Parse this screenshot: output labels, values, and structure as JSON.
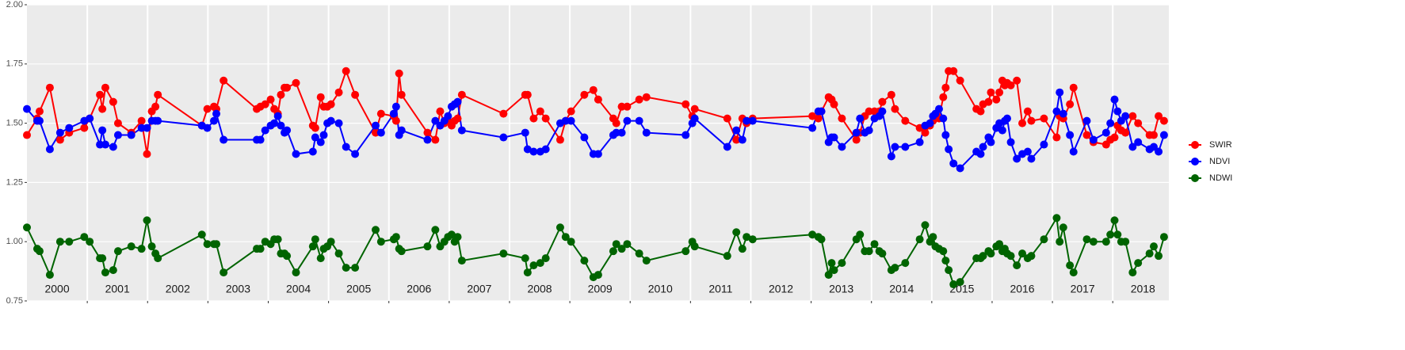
{
  "chart_data": {
    "type": "line",
    "x": [
      2000.0,
      2000.17,
      2000.21,
      2000.38,
      2000.55,
      2000.7,
      2000.95,
      2001.04,
      2001.21,
      2001.25,
      2001.3,
      2001.43,
      2001.51,
      2001.73,
      2001.9,
      2001.99,
      2002.07,
      2002.13,
      2002.17,
      2002.9,
      2002.99,
      2003.1,
      2003.14,
      2003.26,
      2003.81,
      2003.87,
      2003.95,
      2004.04,
      2004.1,
      2004.16,
      2004.21,
      2004.27,
      2004.31,
      2004.46,
      2004.74,
      2004.78,
      2004.87,
      2004.92,
      2004.98,
      2005.04,
      2005.17,
      2005.29,
      2005.44,
      2005.78,
      2005.87,
      2006.08,
      2006.12,
      2006.17,
      2006.21,
      2006.64,
      2006.77,
      2006.85,
      2006.92,
      2006.98,
      2007.04,
      2007.09,
      2007.14,
      2007.21,
      2007.9,
      2008.26,
      2008.3,
      2008.4,
      2008.51,
      2008.6,
      2008.84,
      2008.93,
      2009.02,
      2009.24,
      2009.39,
      2009.47,
      2009.72,
      2009.77,
      2009.86,
      2009.95,
      2010.15,
      2010.27,
      2010.92,
      2011.03,
      2011.07,
      2011.61,
      2011.76,
      2011.86,
      2011.93,
      2012.03,
      2013.02,
      2013.12,
      2013.17,
      2013.29,
      2013.34,
      2013.38,
      2013.51,
      2013.75,
      2013.81,
      2013.89,
      2013.96,
      2014.05,
      2014.13,
      2014.18,
      2014.33,
      2014.39,
      2014.56,
      2014.8,
      2014.89,
      2014.97,
      2015.02,
      2015.06,
      2015.12,
      2015.19,
      2015.23,
      2015.28,
      2015.36,
      2015.47,
      2015.74,
      2015.81,
      2015.85,
      2015.94,
      2015.98,
      2016.07,
      2016.12,
      2016.17,
      2016.21,
      2016.25,
      2016.31,
      2016.41,
      2016.5,
      2016.59,
      2016.65,
      2016.86,
      2017.07,
      2017.12,
      2017.18,
      2017.29,
      2017.35,
      2017.57,
      2017.68,
      2017.89,
      2017.96,
      2018.03,
      2018.08,
      2018.14,
      2018.21,
      2018.33,
      2018.42,
      2018.61,
      2018.68,
      2018.76,
      2018.85
    ],
    "series": [
      {
        "name": "SWIR",
        "color": "#ff0000",
        "values": [
          1.45,
          1.52,
          1.55,
          1.65,
          1.43,
          1.46,
          1.48,
          1.52,
          1.62,
          1.56,
          1.65,
          1.59,
          1.5,
          1.46,
          1.51,
          1.37,
          1.55,
          1.57,
          1.62,
          1.49,
          1.56,
          1.57,
          1.56,
          1.68,
          1.56,
          1.57,
          1.58,
          1.6,
          1.56,
          1.54,
          1.62,
          1.65,
          1.65,
          1.67,
          1.49,
          1.48,
          1.61,
          1.57,
          1.57,
          1.58,
          1.63,
          1.72,
          1.62,
          1.46,
          1.54,
          1.53,
          1.51,
          1.71,
          1.62,
          1.46,
          1.43,
          1.55,
          1.5,
          1.51,
          1.49,
          1.51,
          1.52,
          1.62,
          1.54,
          1.62,
          1.62,
          1.52,
          1.55,
          1.52,
          1.43,
          1.51,
          1.55,
          1.62,
          1.64,
          1.6,
          1.52,
          1.5,
          1.57,
          1.57,
          1.6,
          1.61,
          1.58,
          1.53,
          1.56,
          1.52,
          1.43,
          1.52,
          1.5,
          1.52,
          1.53,
          1.52,
          1.55,
          1.61,
          1.6,
          1.58,
          1.52,
          1.43,
          1.46,
          1.53,
          1.55,
          1.55,
          1.55,
          1.59,
          1.62,
          1.56,
          1.51,
          1.48,
          1.46,
          1.49,
          1.51,
          1.53,
          1.52,
          1.61,
          1.65,
          1.72,
          1.72,
          1.68,
          1.56,
          1.55,
          1.58,
          1.59,
          1.63,
          1.6,
          1.63,
          1.68,
          1.66,
          1.67,
          1.66,
          1.68,
          1.5,
          1.55,
          1.51,
          1.52,
          1.44,
          1.53,
          1.52,
          1.58,
          1.65,
          1.45,
          1.42,
          1.41,
          1.43,
          1.44,
          1.49,
          1.47,
          1.46,
          1.53,
          1.5,
          1.45,
          1.45,
          1.53,
          1.51
        ]
      },
      {
        "name": "NDVI",
        "color": "#0000ff",
        "values": [
          1.56,
          1.51,
          1.51,
          1.39,
          1.46,
          1.48,
          1.51,
          1.52,
          1.41,
          1.47,
          1.41,
          1.4,
          1.45,
          1.45,
          1.48,
          1.48,
          1.51,
          1.51,
          1.51,
          1.49,
          1.48,
          1.51,
          1.54,
          1.43,
          1.43,
          1.43,
          1.47,
          1.49,
          1.5,
          1.53,
          1.49,
          1.46,
          1.47,
          1.37,
          1.38,
          1.44,
          1.42,
          1.45,
          1.5,
          1.51,
          1.5,
          1.4,
          1.37,
          1.49,
          1.46,
          1.54,
          1.57,
          1.45,
          1.47,
          1.43,
          1.51,
          1.49,
          1.51,
          1.53,
          1.57,
          1.58,
          1.59,
          1.47,
          1.44,
          1.46,
          1.39,
          1.38,
          1.38,
          1.39,
          1.5,
          1.51,
          1.51,
          1.44,
          1.37,
          1.37,
          1.45,
          1.46,
          1.46,
          1.51,
          1.51,
          1.46,
          1.45,
          1.5,
          1.52,
          1.4,
          1.47,
          1.43,
          1.51,
          1.51,
          1.48,
          1.55,
          1.55,
          1.42,
          1.44,
          1.44,
          1.4,
          1.46,
          1.52,
          1.46,
          1.47,
          1.52,
          1.53,
          1.55,
          1.36,
          1.4,
          1.4,
          1.42,
          1.49,
          1.5,
          1.53,
          1.54,
          1.56,
          1.52,
          1.45,
          1.39,
          1.33,
          1.31,
          1.38,
          1.37,
          1.4,
          1.44,
          1.42,
          1.48,
          1.5,
          1.47,
          1.51,
          1.52,
          1.42,
          1.35,
          1.37,
          1.38,
          1.35,
          1.41,
          1.55,
          1.63,
          1.54,
          1.45,
          1.38,
          1.51,
          1.43,
          1.46,
          1.5,
          1.6,
          1.55,
          1.51,
          1.53,
          1.4,
          1.42,
          1.39,
          1.4,
          1.38,
          1.45
        ]
      },
      {
        "name": "NDWI",
        "color": "#006400",
        "values": [
          1.06,
          0.97,
          0.96,
          0.86,
          1.0,
          1.0,
          1.02,
          1.0,
          0.93,
          0.93,
          0.87,
          0.88,
          0.96,
          0.98,
          0.97,
          1.09,
          0.98,
          0.95,
          0.93,
          1.03,
          0.99,
          0.99,
          0.99,
          0.87,
          0.97,
          0.97,
          1.0,
          0.99,
          1.01,
          1.01,
          0.95,
          0.95,
          0.94,
          0.87,
          0.98,
          1.01,
          0.93,
          0.97,
          0.98,
          1.0,
          0.95,
          0.89,
          0.89,
          1.05,
          1.0,
          1.01,
          1.02,
          0.97,
          0.96,
          0.98,
          1.05,
          0.98,
          1.0,
          1.02,
          1.03,
          1.0,
          1.02,
          0.92,
          0.95,
          0.93,
          0.87,
          0.9,
          0.91,
          0.93,
          1.06,
          1.02,
          1.0,
          0.92,
          0.85,
          0.86,
          0.96,
          0.99,
          0.97,
          0.99,
          0.95,
          0.92,
          0.96,
          1.0,
          0.98,
          0.94,
          1.04,
          0.97,
          1.02,
          1.01,
          1.03,
          1.02,
          1.01,
          0.86,
          0.91,
          0.88,
          0.91,
          1.01,
          1.03,
          0.96,
          0.96,
          0.99,
          0.96,
          0.95,
          0.88,
          0.89,
          0.91,
          1.01,
          1.07,
          1.0,
          1.02,
          0.98,
          0.97,
          0.96,
          0.92,
          0.88,
          0.82,
          0.83,
          0.93,
          0.93,
          0.94,
          0.96,
          0.95,
          0.98,
          0.99,
          0.96,
          0.97,
          0.95,
          0.94,
          0.9,
          0.95,
          0.93,
          0.94,
          1.01,
          1.1,
          1.0,
          1.06,
          0.9,
          0.87,
          1.01,
          1.0,
          1.0,
          1.03,
          1.09,
          1.03,
          1.0,
          1.0,
          0.87,
          0.91,
          0.95,
          0.98,
          0.94,
          1.02
        ]
      }
    ],
    "xlim": [
      2000,
      2018.93
    ],
    "xgrid": [
      2001,
      2002,
      2003,
      2004,
      2005,
      2006,
      2007,
      2008,
      2009,
      2010,
      2011,
      2012,
      2013,
      2014,
      2015,
      2016,
      2017,
      2018
    ],
    "xticks": [
      {
        "value": 2000.5,
        "label": "2000"
      },
      {
        "value": 2001.5,
        "label": "2001"
      },
      {
        "value": 2002.5,
        "label": "2002"
      },
      {
        "value": 2003.5,
        "label": "2003"
      },
      {
        "value": 2004.5,
        "label": "2004"
      },
      {
        "value": 2005.5,
        "label": "2005"
      },
      {
        "value": 2006.5,
        "label": "2006"
      },
      {
        "value": 2007.5,
        "label": "2007"
      },
      {
        "value": 2008.5,
        "label": "2008"
      },
      {
        "value": 2009.5,
        "label": "2009"
      },
      {
        "value": 2010.5,
        "label": "2010"
      },
      {
        "value": 2011.5,
        "label": "2011"
      },
      {
        "value": 2012.5,
        "label": "2012"
      },
      {
        "value": 2013.5,
        "label": "2013"
      },
      {
        "value": 2014.5,
        "label": "2014"
      },
      {
        "value": 2015.5,
        "label": "2015"
      },
      {
        "value": 2016.5,
        "label": "2016"
      },
      {
        "value": 2017.5,
        "label": "2017"
      },
      {
        "value": 2018.5,
        "label": "2018"
      }
    ],
    "ylim": [
      0.75,
      2.0
    ],
    "yticks": [
      {
        "value": 0.75,
        "label": "0.75"
      },
      {
        "value": 1,
        "label": "1.00"
      },
      {
        "value": 1.25,
        "label": "1.25"
      },
      {
        "value": 1.5,
        "label": "1.50"
      },
      {
        "value": 1.75,
        "label": "1.75"
      },
      {
        "value": 2,
        "label": "2.00"
      }
    ],
    "grid": true
  }
}
